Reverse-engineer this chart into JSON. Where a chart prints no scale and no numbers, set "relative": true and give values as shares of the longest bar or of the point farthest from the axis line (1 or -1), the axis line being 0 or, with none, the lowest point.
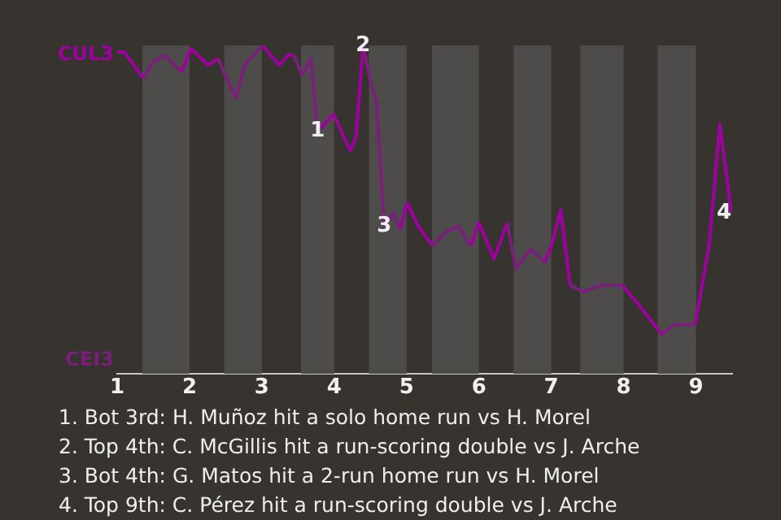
{
  "chart_data": {
    "type": "line",
    "relative": true,
    "xlim": [
      1,
      9.5
    ],
    "xticks": [
      1,
      2,
      3,
      4,
      5,
      6,
      7,
      8,
      9
    ],
    "legend": false,
    "marker": "none",
    "line_style": "solid",
    "bands": [
      {
        "axis": "x",
        "from": 1.35,
        "to": 2,
        "label": null,
        "color": "#4d4c4b"
      },
      {
        "axis": "x",
        "from": 2.48,
        "to": 3,
        "label": null,
        "color": "#4d4c4b"
      },
      {
        "axis": "x",
        "from": 3.54,
        "to": 4,
        "label": null,
        "color": "#4d4c4b"
      },
      {
        "axis": "x",
        "from": 4.48,
        "to": 5,
        "label": null,
        "color": "#4d4c4b"
      },
      {
        "axis": "x",
        "from": 5.35,
        "to": 6,
        "label": null,
        "color": "#4d4c4b"
      },
      {
        "axis": "x",
        "from": 6.48,
        "to": 7,
        "label": null,
        "color": "#4d4c4b"
      },
      {
        "axis": "x",
        "from": 7.4,
        "to": 8,
        "label": null,
        "color": "#4d4c4b"
      },
      {
        "axis": "x",
        "from": 8.47,
        "to": 9,
        "label": null,
        "color": "#4d4c4b"
      }
    ],
    "x": [
      1.0,
      1.1,
      1.36,
      1.5,
      1.66,
      1.89,
      2.02,
      2.26,
      2.39,
      2.64,
      2.76,
      3.01,
      3.24,
      3.36,
      3.44,
      3.56,
      3.68,
      3.77,
      3.99,
      4.22,
      4.3,
      4.4,
      4.5,
      4.59,
      4.69,
      4.82,
      4.91,
      5.01,
      5.16,
      5.36,
      5.53,
      5.71,
      5.89,
      6.0,
      6.21,
      6.39,
      6.51,
      6.71,
      6.91,
      7.0,
      7.13,
      7.26,
      7.44,
      7.7,
      7.98,
      8.21,
      8.53,
      8.71,
      8.99,
      9.18,
      9.33,
      9.49
    ],
    "series": [
      {
        "color": "#a000a0",
        "values": [
          0.98,
          0.98,
          0.9,
          null,
          null,
          0.92,
          0.99,
          0.94,
          0.96,
          null,
          null,
          1,
          0.94,
          0.97,
          0.97,
          null,
          null,
          0.74,
          0.79,
          0.68,
          0.72,
          1,
          null,
          null,
          null,
          null,
          0.44,
          0.52,
          0.45,
          0.39,
          null,
          null,
          0.39,
          0.46,
          0.35,
          0.46,
          null,
          null,
          0.34,
          0.39,
          0.5,
          0.27,
          null,
          null,
          0.27,
          0.21,
          0.12,
          null,
          0.15,
          0.39,
          0.76,
          0.49
        ]
      },
      {
        "color": "#7a1f7c",
        "values": [
          null,
          null,
          0.9,
          0.95,
          0.97,
          0.92,
          null,
          null,
          0.96,
          0.84,
          0.94,
          1,
          null,
          null,
          0.97,
          0.91,
          0.96,
          0.74,
          null,
          null,
          null,
          1,
          0.89,
          0.82,
          0.45,
          0.49,
          0.44,
          null,
          null,
          0.39,
          0.43,
          0.45,
          0.39,
          null,
          null,
          0.46,
          0.32,
          0.38,
          0.34,
          null,
          null,
          0.27,
          0.25,
          0.27,
          0.27,
          null,
          0.12,
          0.15,
          0.15,
          null,
          null,
          null
        ]
      }
    ],
    "annotations": [
      "CUL3",
      "CEI3",
      {
        "text": "1",
        "x": 3.77,
        "y": 0.74
      },
      {
        "text": "2",
        "x": 4.4,
        "y": 1
      },
      {
        "text": "3",
        "x": 4.69,
        "y": 0.45
      },
      {
        "text": "4",
        "x": 9.49,
        "y": 0.49
      },
      "1. Bot 3rd: H. Muñoz hit a solo home run vs H. Morel",
      "2. Top 4th: C. McGillis hit a run-scoring double vs J. Arche",
      "3. Bot 4th: G. Matos hit a 2-run home run vs H. Morel",
      "4. Top 9th: C. Pérez hit a run-scoring double vs J. Arche"
    ]
  }
}
